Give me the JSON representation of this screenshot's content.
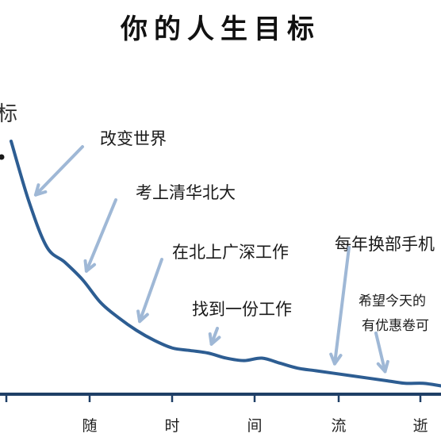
{
  "chart_data": {
    "type": "line",
    "title": "你的人生目标",
    "ylabel_partial": "标",
    "x_tick_labels": [
      "随",
      "时",
      "间",
      "流",
      "逝"
    ],
    "x_label_text": "随时间流逝",
    "series": [
      {
        "x": [
          0,
          1,
          2,
          3,
          4,
          5,
          6,
          7,
          8,
          9,
          10,
          11,
          12,
          13,
          14,
          15,
          16,
          17,
          18,
          19,
          20,
          21,
          22,
          23,
          24
        ],
        "y": [
          100,
          76,
          58,
          52,
          45,
          36,
          30,
          25,
          21,
          18,
          17,
          16,
          14,
          13,
          14,
          12,
          10,
          9,
          8,
          7,
          6,
          5,
          4,
          4,
          3
        ]
      }
    ],
    "xlim": [
      0,
      24
    ],
    "ylim": [
      0,
      100
    ],
    "annotations": [
      {
        "id": "a1",
        "text": "改变世界",
        "point_index": 1
      },
      {
        "id": "a2",
        "text": "考上清华北大",
        "point_index": 4
      },
      {
        "id": "a3",
        "text": "在北上广深工作",
        "point_index": 7
      },
      {
        "id": "a4",
        "text": "找到一份工作",
        "point_index": 11
      },
      {
        "id": "a5",
        "text": "每年换部手机",
        "point_index": 18
      },
      {
        "id": "a6",
        "text": "希望今天的",
        "point_index": 21
      },
      {
        "id": "a7",
        "text": "有优惠卷可",
        "point_index": 21
      }
    ],
    "colors": {
      "line": "#2d5d92",
      "arrow": "#9fb8d6",
      "axis": "#1f3f66"
    },
    "grid": false
  }
}
